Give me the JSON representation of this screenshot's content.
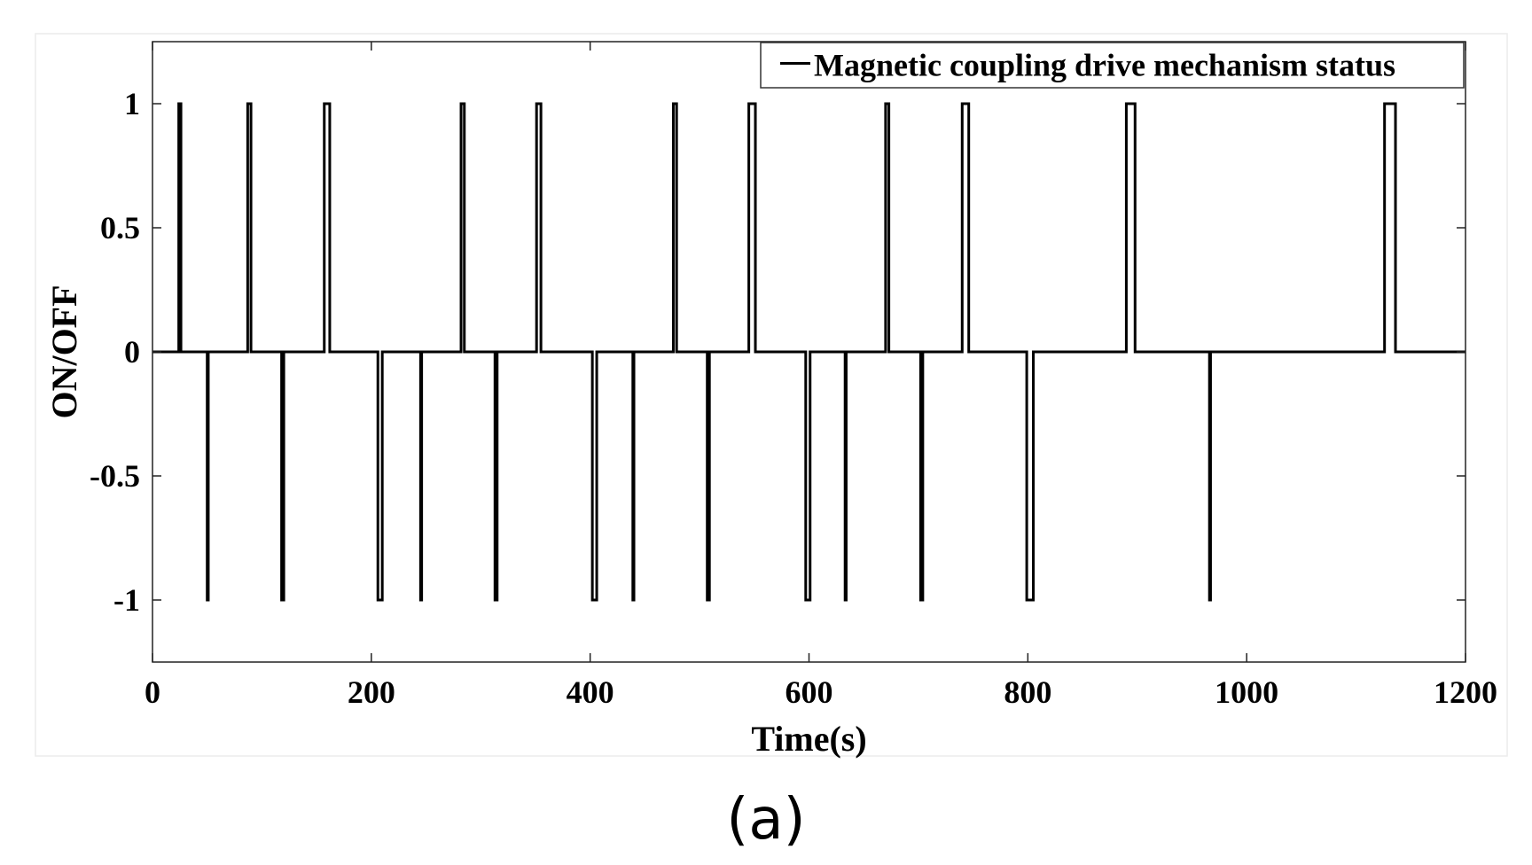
{
  "chart_data": {
    "type": "line",
    "xlabel": "Time(s)",
    "ylabel": "ON/OFF",
    "xlim": [
      0,
      1200
    ],
    "ylim": [
      -1.25,
      1.25
    ],
    "x_ticks": [
      0,
      200,
      400,
      600,
      800,
      1000,
      1200
    ],
    "y_ticks": [
      1,
      0.5,
      0,
      -0.5,
      -1
    ],
    "x_tick_labels": [
      "0",
      "200",
      "400",
      "600",
      "800",
      "1000",
      "1200"
    ],
    "y_tick_labels": [
      "1",
      "0.5",
      "0",
      "-0.5",
      "-1"
    ],
    "grid": true,
    "legend_position": "top-right",
    "series": [
      {
        "name": "Magnetic coupling drive mechanism status",
        "color": "#000000",
        "pulses": [
          {
            "start": 24,
            "end": 26,
            "value": 1
          },
          {
            "start": 50,
            "end": 51,
            "value": -1
          },
          {
            "start": 87,
            "end": 90,
            "value": 1
          },
          {
            "start": 118,
            "end": 120,
            "value": -1
          },
          {
            "start": 157,
            "end": 162,
            "value": 1
          },
          {
            "start": 206,
            "end": 210,
            "value": -1
          },
          {
            "start": 245,
            "end": 246,
            "value": -1
          },
          {
            "start": 282,
            "end": 285,
            "value": 1
          },
          {
            "start": 313,
            "end": 315,
            "value": -1
          },
          {
            "start": 351,
            "end": 355,
            "value": 1
          },
          {
            "start": 402,
            "end": 406,
            "value": -1
          },
          {
            "start": 439,
            "end": 440,
            "value": -1
          },
          {
            "start": 476,
            "end": 479,
            "value": 1
          },
          {
            "start": 507,
            "end": 509,
            "value": -1
          },
          {
            "start": 545,
            "end": 551,
            "value": 1
          },
          {
            "start": 597,
            "end": 601,
            "value": -1
          },
          {
            "start": 633,
            "end": 634,
            "value": -1
          },
          {
            "start": 670,
            "end": 673,
            "value": 1
          },
          {
            "start": 702,
            "end": 704,
            "value": -1
          },
          {
            "start": 740,
            "end": 746,
            "value": 1
          },
          {
            "start": 799,
            "end": 805,
            "value": -1
          },
          {
            "start": 890,
            "end": 898,
            "value": 1
          },
          {
            "start": 966,
            "end": 967,
            "value": -1
          },
          {
            "start": 1126,
            "end": 1136,
            "value": 1
          }
        ]
      }
    ]
  },
  "panel_label": "(a)"
}
